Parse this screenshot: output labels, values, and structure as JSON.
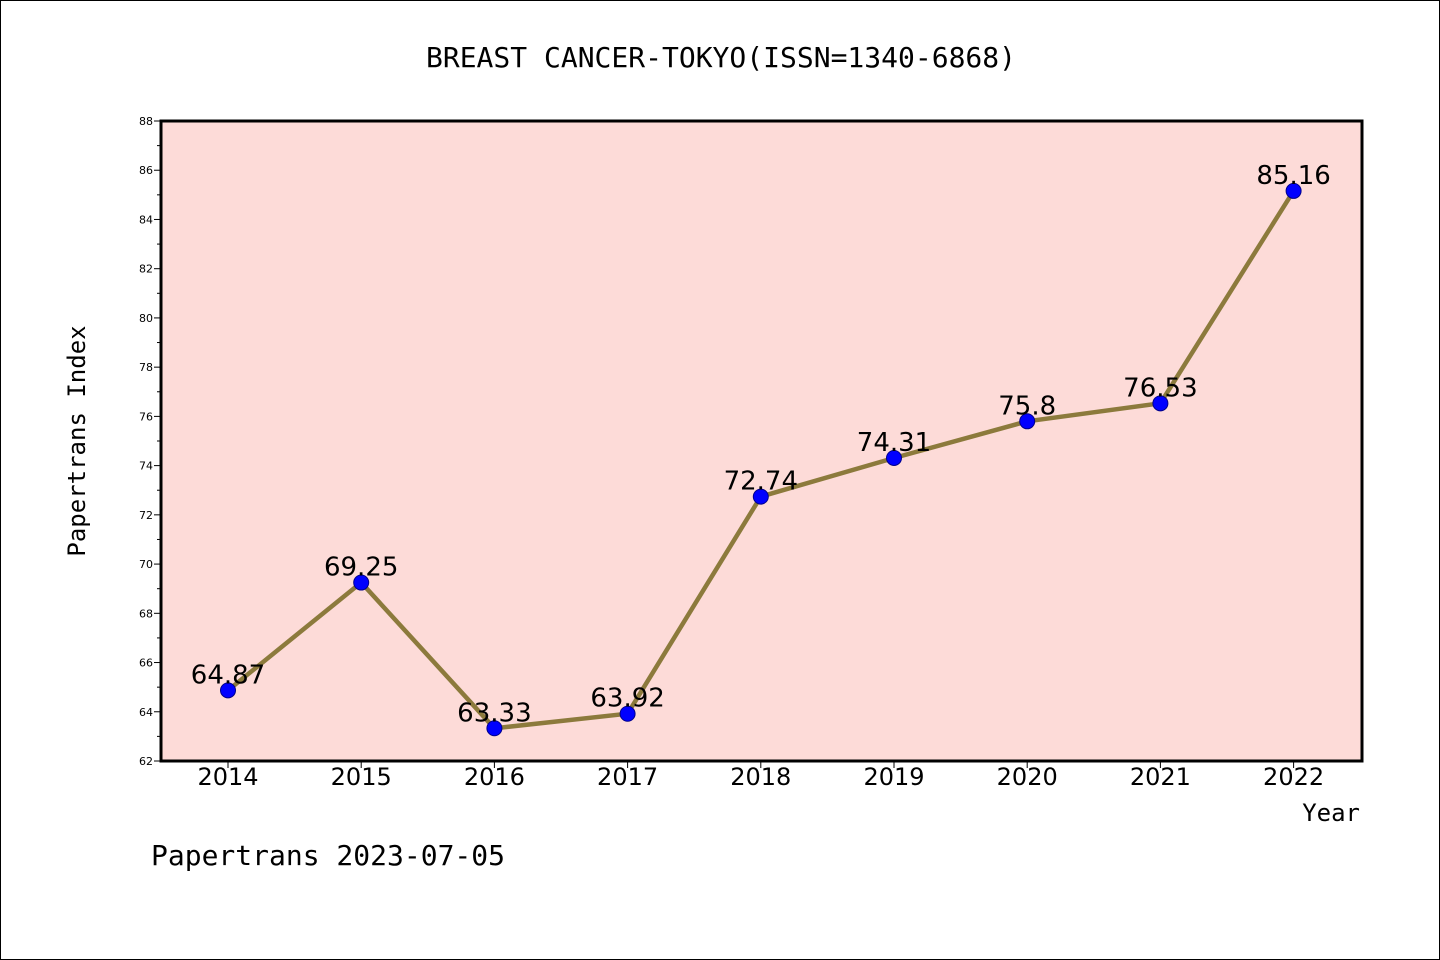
{
  "chart_data": {
    "type": "line",
    "title": "BREAST CANCER-TOKYO(ISSN=1340-6868)",
    "xlabel": "Year",
    "ylabel": "Papertrans Index",
    "categories": [
      "2014",
      "2015",
      "2016",
      "2017",
      "2018",
      "2019",
      "2020",
      "2021",
      "2022"
    ],
    "series": [
      {
        "values": [
          64.87,
          69.25,
          63.33,
          63.92,
          72.74,
          74.31,
          75.8,
          76.53,
          85.16
        ],
        "labels": [
          "64.87",
          "69.25",
          "63.33",
          "63.92",
          "72.74",
          "74.31",
          "75.8",
          "76.53",
          "85.16"
        ]
      }
    ],
    "ylim": [
      62,
      88
    ],
    "yticks": [
      62,
      64,
      66,
      68,
      70,
      72,
      74,
      76,
      78,
      80,
      82,
      84,
      86,
      88
    ],
    "grid": false,
    "legend": "none",
    "colors": {
      "plot_background": "#fddbd8",
      "line": "#8c7a3c",
      "marker": "#0000ff",
      "marker_edge": "#00008b"
    }
  },
  "footer": {
    "text": "Papertrans 2023-07-05"
  }
}
